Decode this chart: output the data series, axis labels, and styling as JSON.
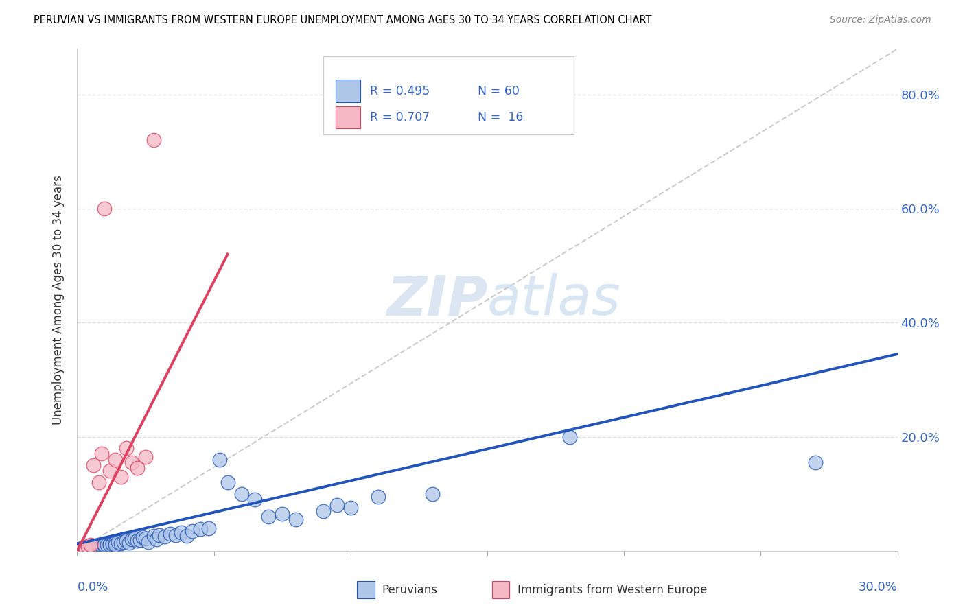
{
  "title": "PERUVIAN VS IMMIGRANTS FROM WESTERN EUROPE UNEMPLOYMENT AMONG AGES 30 TO 34 YEARS CORRELATION CHART",
  "source": "Source: ZipAtlas.com",
  "ylabel": "Unemployment Among Ages 30 to 34 years",
  "xmin": 0.0,
  "xmax": 0.3,
  "ymin": 0.0,
  "ymax": 0.88,
  "blue_color": "#aec6e8",
  "pink_color": "#f5b8c4",
  "blue_line_color": "#2255bb",
  "pink_line_color": "#e04060",
  "legend_text_color": "#3366cc",
  "axis_label_color": "#3366cc",
  "watermark_color": "#d0dff0",
  "blue_scatter_x": [
    0.001,
    0.002,
    0.003,
    0.003,
    0.004,
    0.005,
    0.005,
    0.006,
    0.006,
    0.007,
    0.008,
    0.008,
    0.009,
    0.009,
    0.01,
    0.01,
    0.011,
    0.012,
    0.012,
    0.013,
    0.013,
    0.014,
    0.014,
    0.015,
    0.016,
    0.017,
    0.018,
    0.019,
    0.02,
    0.021,
    0.022,
    0.023,
    0.024,
    0.025,
    0.026,
    0.028,
    0.029,
    0.03,
    0.032,
    0.034,
    0.036,
    0.038,
    0.04,
    0.042,
    0.045,
    0.048,
    0.052,
    0.055,
    0.06,
    0.065,
    0.07,
    0.075,
    0.08,
    0.09,
    0.095,
    0.1,
    0.11,
    0.13,
    0.18,
    0.27
  ],
  "blue_scatter_y": [
    0.003,
    0.004,
    0.005,
    0.006,
    0.004,
    0.006,
    0.007,
    0.005,
    0.008,
    0.007,
    0.006,
    0.009,
    0.008,
    0.01,
    0.009,
    0.011,
    0.01,
    0.012,
    0.011,
    0.013,
    0.012,
    0.014,
    0.01,
    0.015,
    0.013,
    0.016,
    0.018,
    0.014,
    0.02,
    0.022,
    0.018,
    0.019,
    0.024,
    0.022,
    0.016,
    0.026,
    0.02,
    0.028,
    0.025,
    0.03,
    0.028,
    0.032,
    0.026,
    0.035,
    0.038,
    0.04,
    0.16,
    0.12,
    0.1,
    0.09,
    0.06,
    0.065,
    0.055,
    0.07,
    0.08,
    0.075,
    0.095,
    0.1,
    0.2,
    0.155
  ],
  "pink_scatter_x": [
    0.001,
    0.003,
    0.004,
    0.005,
    0.006,
    0.008,
    0.009,
    0.01,
    0.012,
    0.014,
    0.016,
    0.018,
    0.02,
    0.022,
    0.025,
    0.028
  ],
  "pink_scatter_y": [
    0.003,
    0.006,
    0.008,
    0.01,
    0.15,
    0.12,
    0.17,
    0.6,
    0.14,
    0.16,
    0.13,
    0.18,
    0.155,
    0.145,
    0.165,
    0.72
  ],
  "blue_trend_x0": 0.0,
  "blue_trend_x1": 0.3,
  "blue_trend_y0": 0.012,
  "blue_trend_y1": 0.345,
  "pink_trend_x0": 0.0,
  "pink_trend_x1": 0.055,
  "pink_trend_y0": 0.0,
  "pink_trend_y1": 0.52,
  "diag_color": "#cccccc",
  "grid_color": "#dddddd",
  "ytick_values": [
    0.0,
    0.2,
    0.4,
    0.6,
    0.8
  ],
  "ytick_labels": [
    "",
    "20.0%",
    "40.0%",
    "60.0%",
    "80.0%"
  ]
}
